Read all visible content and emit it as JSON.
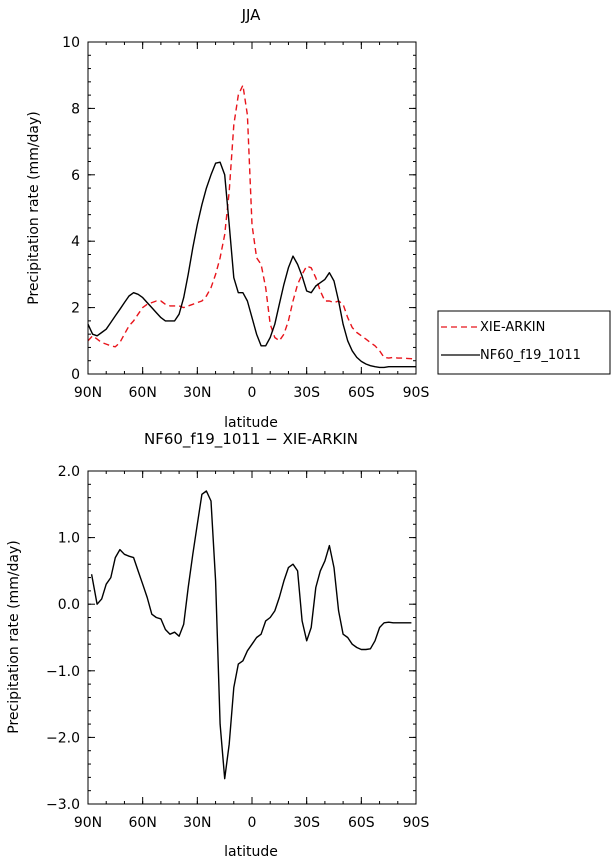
{
  "chart_data": [
    {
      "type": "line",
      "title": "JJA",
      "xlabel": "latitude",
      "ylabel": "Precipitation rate (mm/day)",
      "xlim": [
        90,
        -90
      ],
      "ylim": [
        0,
        10
      ],
      "x_ticks": [
        90,
        60,
        30,
        0,
        -30,
        -60,
        -90
      ],
      "x_tick_labels": [
        "90N",
        "60N",
        "30N",
        "0",
        "30S",
        "60S",
        "90S"
      ],
      "y_ticks": [
        0,
        2,
        4,
        6,
        8,
        10
      ],
      "y_tick_labels": [
        "0",
        "2",
        "4",
        "6",
        "8",
        "10"
      ],
      "legend": {
        "position": "right",
        "entries": [
          "XIE-ARKIN",
          "NF60_f19_1011"
        ]
      },
      "series": [
        {
          "name": "XIE-ARKIN",
          "color": "#e8141b",
          "dash": "dashed",
          "x": [
            90,
            87.5,
            85,
            82.5,
            80,
            77.5,
            75,
            72.5,
            70,
            67.5,
            65,
            62.5,
            60,
            57.5,
            55,
            52.5,
            50,
            47.5,
            45,
            42.5,
            40,
            37.5,
            35,
            32.5,
            30,
            27.5,
            25,
            22.5,
            20,
            17.5,
            15,
            12.5,
            10,
            7.5,
            5,
            2.5,
            0,
            -2.5,
            -5,
            -7.5,
            -10,
            -12.5,
            -15,
            -17.5,
            -20,
            -22.5,
            -25,
            -27.5,
            -30,
            -32.5,
            -35,
            -37.5,
            -40,
            -42.5,
            -45,
            -47.5,
            -50,
            -52.5,
            -55,
            -57.5,
            -60,
            -62.5,
            -65,
            -67.5,
            -70,
            -72.5,
            -75,
            -77.5,
            -80,
            -82.5,
            -85,
            -87.5,
            -90
          ],
          "values": [
            1.0,
            1.15,
            1.05,
            0.95,
            0.9,
            0.85,
            0.82,
            0.95,
            1.2,
            1.45,
            1.6,
            1.8,
            2.0,
            2.1,
            2.15,
            2.2,
            2.2,
            2.1,
            2.05,
            2.05,
            2.05,
            2.0,
            2.05,
            2.1,
            2.15,
            2.2,
            2.35,
            2.6,
            3.0,
            3.5,
            4.2,
            5.5,
            7.5,
            8.4,
            8.7,
            7.8,
            4.5,
            3.5,
            3.3,
            2.6,
            1.5,
            1.1,
            1.0,
            1.2,
            1.6,
            2.2,
            2.7,
            3.0,
            3.25,
            3.2,
            2.9,
            2.5,
            2.2,
            2.2,
            2.15,
            2.2,
            2.1,
            1.7,
            1.4,
            1.25,
            1.15,
            1.05,
            0.95,
            0.85,
            0.7,
            0.5,
            0.48,
            0.5,
            0.48,
            0.48,
            0.47,
            0.46,
            0.45
          ]
        },
        {
          "name": "NF60_f19_1011",
          "color": "#000000",
          "dash": "solid",
          "x": [
            90,
            87.5,
            85,
            82.5,
            80,
            77.5,
            75,
            72.5,
            70,
            67.5,
            65,
            62.5,
            60,
            57.5,
            55,
            52.5,
            50,
            47.5,
            45,
            42.5,
            40,
            37.5,
            35,
            32.5,
            30,
            27.5,
            25,
            22.5,
            20,
            17.5,
            15,
            12.5,
            10,
            7.5,
            5,
            2.5,
            0,
            -2.5,
            -5,
            -7.5,
            -10,
            -12.5,
            -15,
            -17.5,
            -20,
            -22.5,
            -25,
            -27.5,
            -30,
            -32.5,
            -35,
            -37.5,
            -40,
            -42.5,
            -45,
            -47.5,
            -50,
            -52.5,
            -55,
            -57.5,
            -60,
            -62.5,
            -65,
            -67.5,
            -70,
            -72.5,
            -75,
            -77.5,
            -80,
            -82.5,
            -85,
            -87.5,
            -90
          ],
          "values": [
            1.5,
            1.2,
            1.15,
            1.25,
            1.35,
            1.55,
            1.75,
            1.95,
            2.15,
            2.35,
            2.45,
            2.4,
            2.3,
            2.15,
            2.0,
            1.85,
            1.7,
            1.6,
            1.6,
            1.6,
            1.8,
            2.3,
            3.0,
            3.8,
            4.5,
            5.1,
            5.6,
            6.0,
            6.35,
            6.38,
            6.0,
            4.5,
            2.9,
            2.45,
            2.45,
            2.2,
            1.7,
            1.2,
            0.85,
            0.85,
            1.1,
            1.5,
            2.1,
            2.7,
            3.2,
            3.55,
            3.3,
            2.95,
            2.5,
            2.45,
            2.65,
            2.75,
            2.85,
            3.05,
            2.8,
            2.2,
            1.5,
            1.0,
            0.7,
            0.5,
            0.38,
            0.3,
            0.25,
            0.22,
            0.2,
            0.2,
            0.22,
            0.22,
            0.22,
            0.22,
            0.22,
            0.22,
            0.22
          ]
        }
      ]
    },
    {
      "type": "line",
      "title": "NF60_f19_1011 − XIE-ARKIN",
      "xlabel": "latitude",
      "ylabel": "Precipitation rate (mm/day)",
      "xlim": [
        90,
        -90
      ],
      "ylim": [
        -3.0,
        2.0
      ],
      "x_ticks": [
        90,
        60,
        30,
        0,
        -30,
        -60,
        -90
      ],
      "x_tick_labels": [
        "90N",
        "60N",
        "30N",
        "0",
        "30S",
        "60S",
        "90S"
      ],
      "y_ticks": [
        -3,
        -2,
        -1,
        0,
        1,
        2
      ],
      "y_tick_labels": [
        "−3.0",
        "−2.0",
        "−1.0",
        "0.0",
        "1.0",
        "2.0"
      ],
      "series": [
        {
          "name": "NF60_f19_1011 − XIE-ARKIN",
          "color": "#000000",
          "dash": "solid",
          "x": [
            88,
            85,
            82.5,
            80,
            77.5,
            75,
            72.5,
            70,
            67.5,
            65,
            62.5,
            60,
            57.5,
            55,
            52.5,
            50,
            47.5,
            45,
            42.5,
            40,
            37.5,
            35,
            32.5,
            30,
            27.5,
            25,
            22.5,
            20,
            17.5,
            15,
            12.5,
            10,
            7.5,
            5,
            2.5,
            0,
            -2.5,
            -5,
            -7.5,
            -10,
            -12.5,
            -15,
            -17.5,
            -20,
            -22.5,
            -25,
            -27.5,
            -30,
            -32.5,
            -35,
            -37.5,
            -40,
            -42.5,
            -45,
            -47.5,
            -50,
            -52.5,
            -55,
            -57.5,
            -60,
            -62.5,
            -65,
            -67.5,
            -70,
            -72.5,
            -75,
            -77.5,
            -80,
            -82.5,
            -85,
            -87.5
          ],
          "values": [
            0.45,
            0.0,
            0.08,
            0.3,
            0.4,
            0.7,
            0.82,
            0.75,
            0.72,
            0.7,
            0.5,
            0.3,
            0.1,
            -0.15,
            -0.2,
            -0.22,
            -0.38,
            -0.45,
            -0.42,
            -0.48,
            -0.3,
            0.25,
            0.75,
            1.2,
            1.65,
            1.7,
            1.55,
            0.35,
            -1.8,
            -2.62,
            -2.1,
            -1.25,
            -0.9,
            -0.85,
            -0.7,
            -0.6,
            -0.5,
            -0.45,
            -0.25,
            -0.2,
            -0.1,
            0.1,
            0.35,
            0.55,
            0.6,
            0.5,
            -0.25,
            -0.55,
            -0.35,
            0.25,
            0.5,
            0.65,
            0.88,
            0.55,
            -0.1,
            -0.45,
            -0.5,
            -0.6,
            -0.65,
            -0.68,
            -0.68,
            -0.67,
            -0.55,
            -0.35,
            -0.28,
            -0.27,
            -0.28,
            -0.28,
            -0.28,
            -0.28,
            -0.28
          ]
        }
      ]
    }
  ]
}
